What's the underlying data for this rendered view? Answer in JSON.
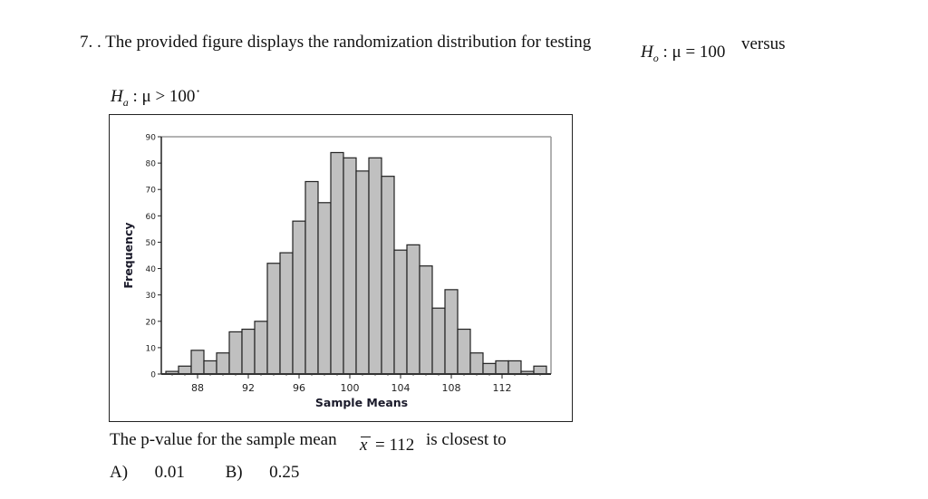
{
  "question": {
    "number": "7. .",
    "text": "The provided figure displays the randomization distribution for testing",
    "null_hypothesis": {
      "H": "H",
      "sub": "o",
      "rest": ": μ = 100"
    },
    "versus": "versus",
    "alt_hypothesis": {
      "H": "H",
      "sub": "a",
      "rest": ": μ > 100",
      "trail": "˙"
    },
    "prompt_start": "The p-value for the sample mean",
    "xbar": "x",
    "xbar_value": "= 112",
    "prompt_end": "is closest to",
    "options": [
      {
        "label": "A)",
        "value": "0.01"
      },
      {
        "label": "B)",
        "value": "0.25"
      }
    ]
  },
  "chart_data": {
    "type": "bar",
    "title": "",
    "xlabel": "Sample Means",
    "ylabel": "Frequency",
    "bin_width": 1,
    "x": [
      86,
      87,
      88,
      89,
      90,
      91,
      92,
      93,
      94,
      95,
      96,
      97,
      98,
      99,
      100,
      101,
      102,
      103,
      104,
      105,
      106,
      107,
      108,
      109,
      110,
      111,
      112,
      113,
      114,
      115
    ],
    "values": [
      1,
      3,
      9,
      5,
      8,
      16,
      17,
      20,
      42,
      46,
      58,
      73,
      65,
      84,
      82,
      77,
      82,
      75,
      47,
      49,
      41,
      25,
      32,
      17,
      8,
      4,
      5,
      5,
      1,
      3
    ],
    "xticks": [
      88,
      92,
      96,
      100,
      104,
      108,
      112
    ],
    "yticks": [
      0,
      10,
      20,
      30,
      40,
      50,
      60,
      70,
      80,
      90
    ],
    "ylim": [
      0,
      90
    ],
    "grid": false,
    "legend": null,
    "bar_color": "#c0c0c0",
    "edge_color": "#222222"
  }
}
